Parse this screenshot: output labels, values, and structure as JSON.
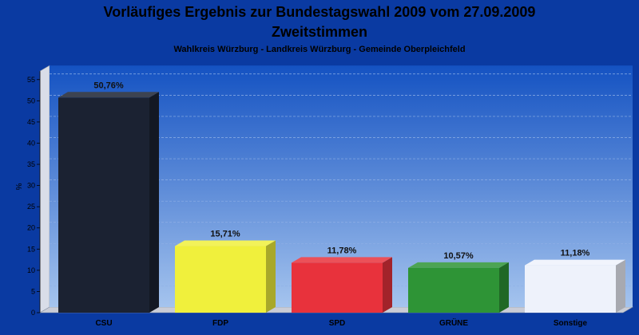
{
  "chart_data": {
    "type": "bar",
    "title": "Vorläufiges Ergebnis zur Bundestagswahl 2009 vom 27.09.2009",
    "subtitle": "Zweitstimmen",
    "caption": "Wahlkreis Würzburg - Landkreis Würzburg - Gemeinde Oberpleichfeld",
    "xlabel": "",
    "ylabel": "%",
    "ylim": [
      0,
      57
    ],
    "yticks": [
      0,
      5,
      10,
      15,
      20,
      25,
      30,
      35,
      40,
      45,
      50,
      55
    ],
    "grid": true,
    "categories": [
      "CSU",
      "FDP",
      "SPD",
      "GRÜNE",
      "Sonstige"
    ],
    "values": [
      50.76,
      15.71,
      11.78,
      10.57,
      11.18
    ],
    "value_labels": [
      "50,76%",
      "15,71%",
      "11,78%",
      "10,57%",
      "11,18%"
    ],
    "colors": [
      "#1b2232",
      "#f0f03c",
      "#e8323c",
      "#2e9436",
      "#eef2fb"
    ]
  }
}
